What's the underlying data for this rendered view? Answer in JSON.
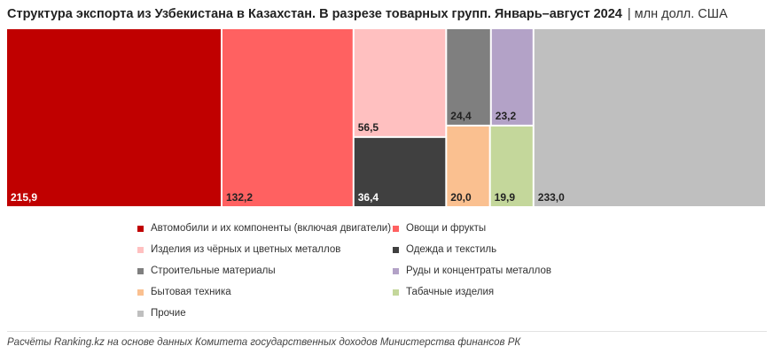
{
  "header": {
    "title": "Структура экспорта из Узбекистана в Казахстан. В разрезе товарных групп. Январь–август 2024",
    "separator": "|",
    "unit": "млн долл. США"
  },
  "chart_data": {
    "type": "treemap",
    "unit": "млн долл. США",
    "items": [
      {
        "name": "Автомобили и их компоненты (включая двигатели)",
        "value": 215.9,
        "label": "215,9",
        "color": "#c00000",
        "label_color": "#ffffff"
      },
      {
        "name": "Овощи и фрукты",
        "value": 132.2,
        "label": "132,2",
        "color": "#ff6161",
        "label_color": "#222222"
      },
      {
        "name": "Изделия из чёрных и цветных металлов",
        "value": 56.5,
        "label": "56,5",
        "color": "#ffc0c0",
        "label_color": "#222222"
      },
      {
        "name": "Одежда и текстиль",
        "value": 36.4,
        "label": "36,4",
        "color": "#404040",
        "label_color": "#ffffff"
      },
      {
        "name": "Строительные материалы",
        "value": 24.4,
        "label": "24,4",
        "color": "#7f7f7f",
        "label_color": "#222222"
      },
      {
        "name": "Руды и концентраты металлов",
        "value": 23.2,
        "label": "23,2",
        "color": "#b3a2c7",
        "label_color": "#222222"
      },
      {
        "name": "Бытовая техника",
        "value": 20.0,
        "label": "20,0",
        "color": "#fac090",
        "label_color": "#222222"
      },
      {
        "name": "Табачные изделия",
        "value": 19.9,
        "label": "19,9",
        "color": "#c4d79b",
        "label_color": "#222222"
      },
      {
        "name": "Прочие",
        "value": 233.0,
        "label": "233,0",
        "color": "#bfbfbf",
        "label_color": "#222222"
      }
    ],
    "legend_position": "bottom"
  },
  "footer": {
    "source": "Расчёты Ranking.kz на основе данных Комитета государственных доходов Министерства финансов РК"
  }
}
